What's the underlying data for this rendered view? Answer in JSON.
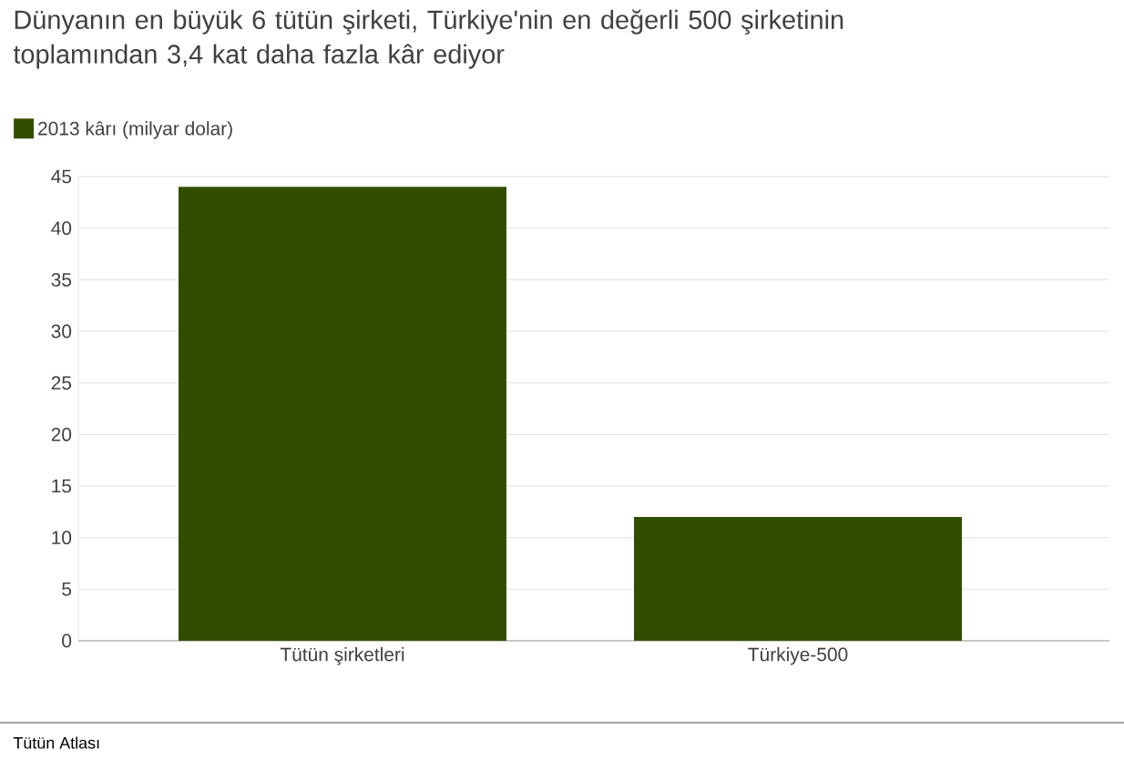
{
  "chart_data": {
    "type": "bar",
    "title": "Dünyanın en büyük 6 tütün şirketi, Türkiye'nin en değerli 500 şirketinin toplamından 3,4 kat daha fazla kâr ediyor",
    "categories": [
      "Tütün şirketleri",
      "Türkiye-500"
    ],
    "series": [
      {
        "name": "2013 kârı (milyar dolar)",
        "color": "#334d00",
        "values": [
          44,
          12
        ]
      }
    ],
    "ylim": [
      0,
      45
    ],
    "yticks": [
      0,
      5,
      10,
      15,
      20,
      25,
      30,
      35,
      40,
      45
    ],
    "grid": "y",
    "legend": "top left",
    "annotations": [
      "Tütün Atlası"
    ]
  }
}
